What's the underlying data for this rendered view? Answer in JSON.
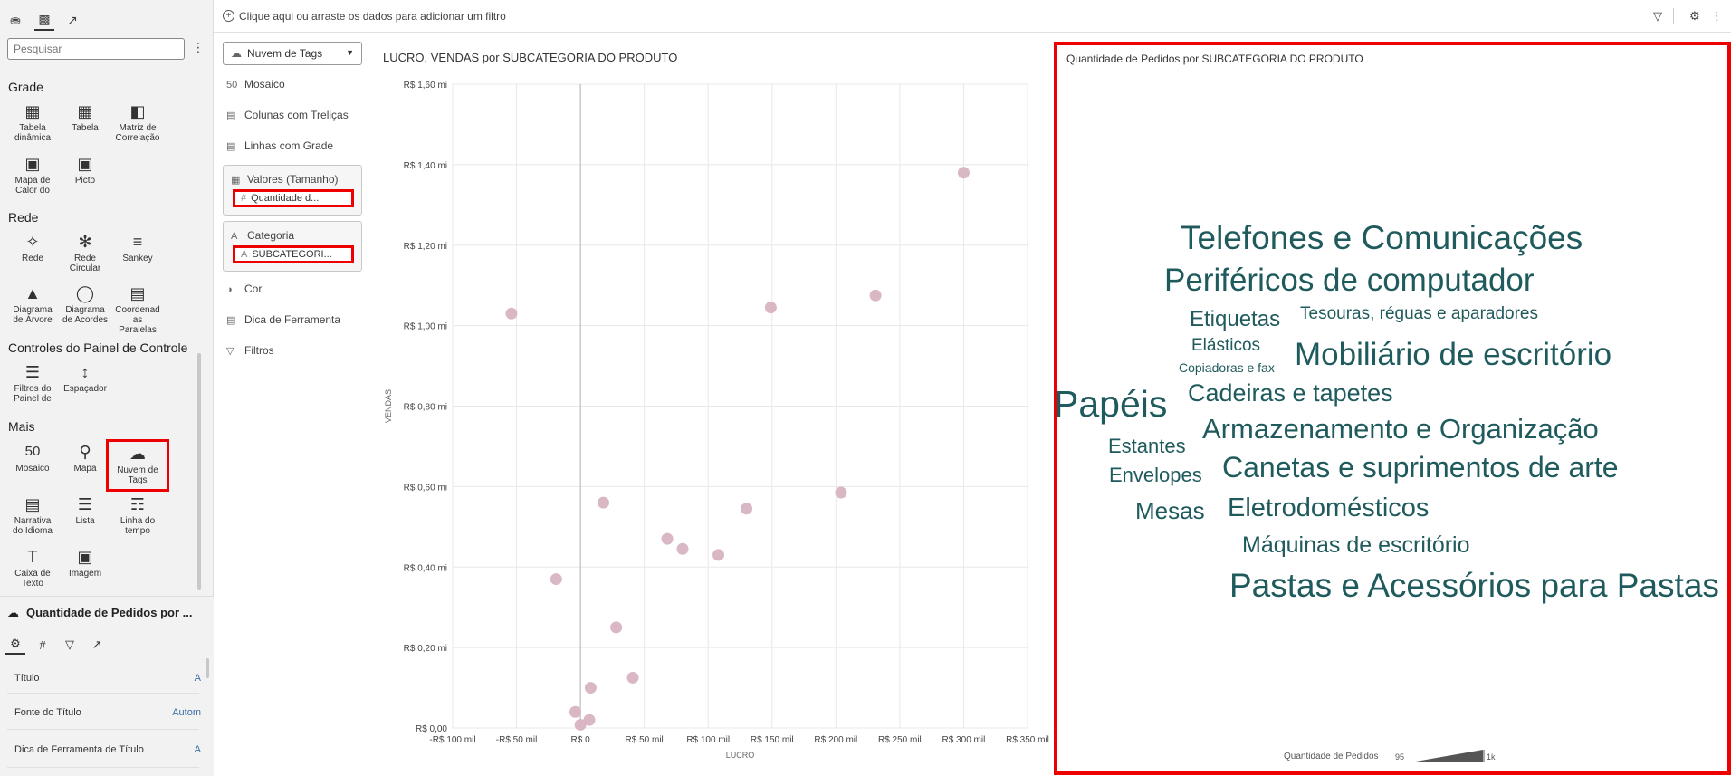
{
  "left_panel": {
    "search_placeholder": "Pesquisar",
    "sections": {
      "grade": "Grade",
      "rede": "Rede",
      "controles": "Controles do Painel de Controle",
      "mais": "Mais"
    },
    "vis": {
      "tabela_dinamica": "Tabela dinâmica",
      "tabela": "Tabela",
      "matriz": "Matriz de Correlação",
      "mapa_calor": "Mapa de Calor do",
      "picto": "Picto",
      "rede": "Rede",
      "rede_circular": "Rede Circular",
      "sankey": "Sankey",
      "diagrama_arvore": "Diagrama de Árvore",
      "diagrama_acordes": "Diagrama de Acordes",
      "coordenadas": "Coordenad as Paralelas",
      "filtros_painel": "Filtros do Painel de",
      "espacador": "Espaçador",
      "mosaico": "Mosaico",
      "mapa": "Mapa",
      "nuvem": "Nuvem de Tags",
      "narrativa": "Narrativa do Idioma",
      "lista": "Lista",
      "linha_tempo": "Linha do tempo",
      "caixa_texto": "Caixa de Texto",
      "imagem": "Imagem"
    },
    "properties": {
      "title": "Quantidade de Pedidos por ...",
      "rows": [
        {
          "label": "Título",
          "value": "A"
        },
        {
          "label": "Fonte do Título",
          "value": "Autom"
        },
        {
          "label": "Dica de Ferramenta de Título",
          "value": "A"
        }
      ]
    }
  },
  "filter_bar": {
    "text": "Clique aqui ou arraste os dados para adicionar um filtro"
  },
  "grammar": {
    "vis_type": "Nuvem de Tags",
    "mosaico": "Mosaico",
    "colunas_trelicas": "Colunas com Treliças",
    "linhas_grade": "Linhas com Grade",
    "valores_tamanho": "Valores (Tamanho)",
    "valores_pill": "Quantidade d...",
    "categoria": "Categoria",
    "categoria_pill": "SUBCATEGORI...",
    "cor": "Cor",
    "dica": "Dica de Ferramenta",
    "filtros": "Filtros"
  },
  "scatter": {
    "title": "LUCRO, VENDAS por SUBCATEGORIA DO PRODUTO",
    "chart_data": {
      "type": "scatter",
      "title": "LUCRO, VENDAS por SUBCATEGORIA DO PRODUTO",
      "xlabel": "LUCRO",
      "ylabel": "VENDAS",
      "xlim": [
        -100,
        350
      ],
      "ylim": [
        0,
        1.6
      ],
      "x_ticks": [
        -100,
        -50,
        0,
        50,
        100,
        150,
        200,
        250,
        300,
        350
      ],
      "x_tick_labels": [
        "-R$ 100 mil",
        "-R$ 50 mil",
        "R$ 0",
        "R$ 50 mil",
        "R$ 100 mil",
        "R$ 150 mil",
        "R$ 200 mil",
        "R$ 250 mil",
        "R$ 300 mil",
        "R$ 350 mil"
      ],
      "y_ticks": [
        0,
        0.2,
        0.4,
        0.6,
        0.8,
        1.0,
        1.2,
        1.4,
        1.6
      ],
      "y_tick_labels": [
        "R$ 0,00",
        "R$ 0,20 mi",
        "R$ 0,40 mi",
        "R$ 0,60 mi",
        "R$ 0,80 mi",
        "R$ 1,00 mi",
        "R$ 1,20 mi",
        "R$ 1,40 mi",
        "R$ 1,60 mi"
      ],
      "points": [
        {
          "x": 300,
          "y": 1.38
        },
        {
          "x": 231,
          "y": 1.075
        },
        {
          "x": 149,
          "y": 1.045
        },
        {
          "x": -54,
          "y": 1.03
        },
        {
          "x": 204,
          "y": 0.585
        },
        {
          "x": 18,
          "y": 0.56
        },
        {
          "x": 130,
          "y": 0.545
        },
        {
          "x": 68,
          "y": 0.47
        },
        {
          "x": 80,
          "y": 0.445
        },
        {
          "x": 108,
          "y": 0.43
        },
        {
          "x": -19,
          "y": 0.37
        },
        {
          "x": 28,
          "y": 0.25
        },
        {
          "x": 41,
          "y": 0.125
        },
        {
          "x": 8,
          "y": 0.1
        },
        {
          "x": -4,
          "y": 0.04
        },
        {
          "x": 7,
          "y": 0.02
        },
        {
          "x": 0,
          "y": 0.008
        }
      ],
      "grid": true,
      "point_color": "#d8b3c1"
    }
  },
  "cloud": {
    "title": "Quantidade de Pedidos por SUBCATEGORIA DO PRODUTO",
    "color": "#1f5a5c",
    "tags": [
      {
        "text": "Telefones e Comunicações"
      },
      {
        "text": "Periféricos de computador"
      },
      {
        "text": "Etiquetas"
      },
      {
        "text": "Tesouras, réguas e aparadores"
      },
      {
        "text": "Elásticos"
      },
      {
        "text": "Copiadoras e fax"
      },
      {
        "text": "Mobiliário de escritório"
      },
      {
        "text": "Papéis"
      },
      {
        "text": "Cadeiras e tapetes"
      },
      {
        "text": "Armazenamento e Organização"
      },
      {
        "text": "Estantes"
      },
      {
        "text": "Canetas e suprimentos de arte"
      },
      {
        "text": "Envelopes"
      },
      {
        "text": "Mesas"
      },
      {
        "text": "Eletrodomésticos"
      },
      {
        "text": "Máquinas de escritório"
      },
      {
        "text": "Pastas e Acessórios para Pastas"
      }
    ],
    "legend": {
      "label": "Quantidade de Pedidos",
      "min": "95",
      "max": "1k"
    }
  }
}
